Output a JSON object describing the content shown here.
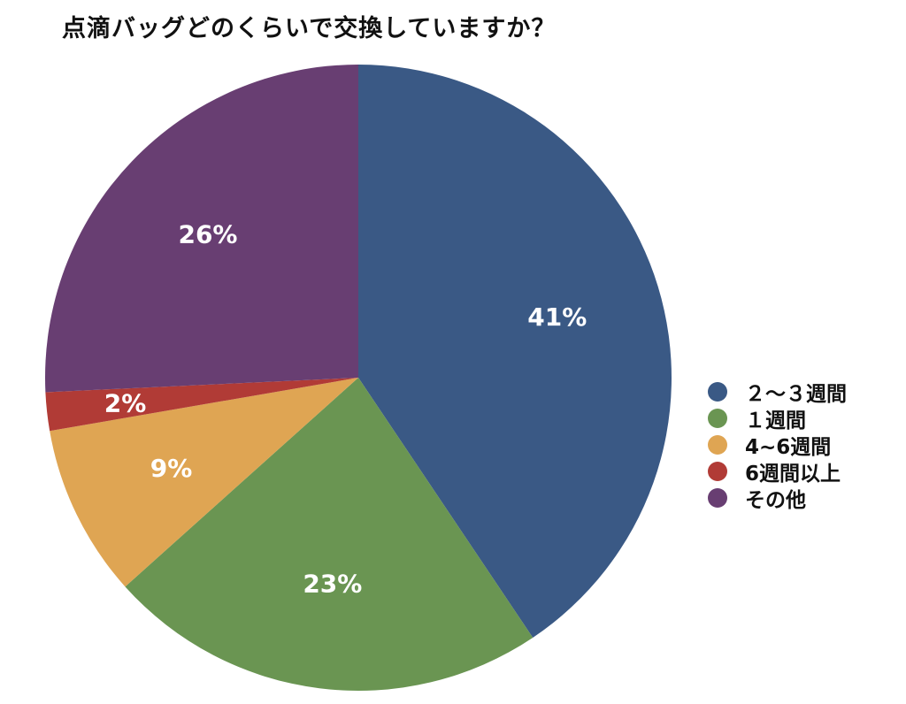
{
  "chart_data": {
    "type": "pie",
    "title": "点滴バッグどのくらいで交換していますか？",
    "categories": [
      "２～３週間",
      "１週間",
      "4~6週間",
      "6週間以上",
      "その他"
    ],
    "values": [
      41,
      23,
      9,
      2,
      26
    ],
    "labels": [
      "41%",
      "23%",
      "9%",
      "2%",
      "26%"
    ],
    "colors": [
      "#3a5985",
      "#6a9552",
      "#dfa553",
      "#b13b36",
      "#683e72"
    ],
    "legend_position": "right"
  }
}
